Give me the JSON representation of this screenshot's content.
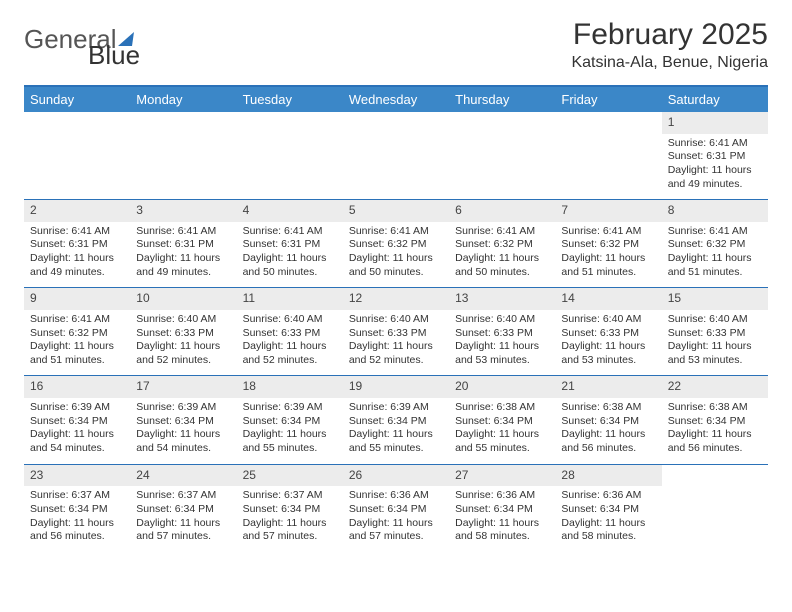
{
  "brand": {
    "text1": "General",
    "text2": "Blue"
  },
  "title": "February 2025",
  "location": "Katsina-Ala, Benue, Nigeria",
  "colors": {
    "header_blue": "#3b87c8",
    "rule_blue": "#2a71b8",
    "daynum_bg": "#ececec",
    "text": "#333333",
    "page_bg": "#ffffff"
  },
  "typography": {
    "title_fontsize": 30,
    "location_fontsize": 16,
    "dayhead_fontsize": 13,
    "body_fontsize": 10.5
  },
  "days_of_week": [
    "Sunday",
    "Monday",
    "Tuesday",
    "Wednesday",
    "Thursday",
    "Friday",
    "Saturday"
  ],
  "layout": {
    "columns": 7,
    "rows": 5,
    "first_weekday_index": 6,
    "days_in_month": 28
  },
  "cells": [
    [
      {
        "blank": true
      },
      {
        "blank": true
      },
      {
        "blank": true
      },
      {
        "blank": true
      },
      {
        "blank": true
      },
      {
        "blank": true
      },
      {
        "n": "1",
        "sunrise": "Sunrise: 6:41 AM",
        "sunset": "Sunset: 6:31 PM",
        "daylight": "Daylight: 11 hours and 49 minutes."
      }
    ],
    [
      {
        "n": "2",
        "sunrise": "Sunrise: 6:41 AM",
        "sunset": "Sunset: 6:31 PM",
        "daylight": "Daylight: 11 hours and 49 minutes."
      },
      {
        "n": "3",
        "sunrise": "Sunrise: 6:41 AM",
        "sunset": "Sunset: 6:31 PM",
        "daylight": "Daylight: 11 hours and 49 minutes."
      },
      {
        "n": "4",
        "sunrise": "Sunrise: 6:41 AM",
        "sunset": "Sunset: 6:31 PM",
        "daylight": "Daylight: 11 hours and 50 minutes."
      },
      {
        "n": "5",
        "sunrise": "Sunrise: 6:41 AM",
        "sunset": "Sunset: 6:32 PM",
        "daylight": "Daylight: 11 hours and 50 minutes."
      },
      {
        "n": "6",
        "sunrise": "Sunrise: 6:41 AM",
        "sunset": "Sunset: 6:32 PM",
        "daylight": "Daylight: 11 hours and 50 minutes."
      },
      {
        "n": "7",
        "sunrise": "Sunrise: 6:41 AM",
        "sunset": "Sunset: 6:32 PM",
        "daylight": "Daylight: 11 hours and 51 minutes."
      },
      {
        "n": "8",
        "sunrise": "Sunrise: 6:41 AM",
        "sunset": "Sunset: 6:32 PM",
        "daylight": "Daylight: 11 hours and 51 minutes."
      }
    ],
    [
      {
        "n": "9",
        "sunrise": "Sunrise: 6:41 AM",
        "sunset": "Sunset: 6:32 PM",
        "daylight": "Daylight: 11 hours and 51 minutes."
      },
      {
        "n": "10",
        "sunrise": "Sunrise: 6:40 AM",
        "sunset": "Sunset: 6:33 PM",
        "daylight": "Daylight: 11 hours and 52 minutes."
      },
      {
        "n": "11",
        "sunrise": "Sunrise: 6:40 AM",
        "sunset": "Sunset: 6:33 PM",
        "daylight": "Daylight: 11 hours and 52 minutes."
      },
      {
        "n": "12",
        "sunrise": "Sunrise: 6:40 AM",
        "sunset": "Sunset: 6:33 PM",
        "daylight": "Daylight: 11 hours and 52 minutes."
      },
      {
        "n": "13",
        "sunrise": "Sunrise: 6:40 AM",
        "sunset": "Sunset: 6:33 PM",
        "daylight": "Daylight: 11 hours and 53 minutes."
      },
      {
        "n": "14",
        "sunrise": "Sunrise: 6:40 AM",
        "sunset": "Sunset: 6:33 PM",
        "daylight": "Daylight: 11 hours and 53 minutes."
      },
      {
        "n": "15",
        "sunrise": "Sunrise: 6:40 AM",
        "sunset": "Sunset: 6:33 PM",
        "daylight": "Daylight: 11 hours and 53 minutes."
      }
    ],
    [
      {
        "n": "16",
        "sunrise": "Sunrise: 6:39 AM",
        "sunset": "Sunset: 6:34 PM",
        "daylight": "Daylight: 11 hours and 54 minutes."
      },
      {
        "n": "17",
        "sunrise": "Sunrise: 6:39 AM",
        "sunset": "Sunset: 6:34 PM",
        "daylight": "Daylight: 11 hours and 54 minutes."
      },
      {
        "n": "18",
        "sunrise": "Sunrise: 6:39 AM",
        "sunset": "Sunset: 6:34 PM",
        "daylight": "Daylight: 11 hours and 55 minutes."
      },
      {
        "n": "19",
        "sunrise": "Sunrise: 6:39 AM",
        "sunset": "Sunset: 6:34 PM",
        "daylight": "Daylight: 11 hours and 55 minutes."
      },
      {
        "n": "20",
        "sunrise": "Sunrise: 6:38 AM",
        "sunset": "Sunset: 6:34 PM",
        "daylight": "Daylight: 11 hours and 55 minutes."
      },
      {
        "n": "21",
        "sunrise": "Sunrise: 6:38 AM",
        "sunset": "Sunset: 6:34 PM",
        "daylight": "Daylight: 11 hours and 56 minutes."
      },
      {
        "n": "22",
        "sunrise": "Sunrise: 6:38 AM",
        "sunset": "Sunset: 6:34 PM",
        "daylight": "Daylight: 11 hours and 56 minutes."
      }
    ],
    [
      {
        "n": "23",
        "sunrise": "Sunrise: 6:37 AM",
        "sunset": "Sunset: 6:34 PM",
        "daylight": "Daylight: 11 hours and 56 minutes."
      },
      {
        "n": "24",
        "sunrise": "Sunrise: 6:37 AM",
        "sunset": "Sunset: 6:34 PM",
        "daylight": "Daylight: 11 hours and 57 minutes."
      },
      {
        "n": "25",
        "sunrise": "Sunrise: 6:37 AM",
        "sunset": "Sunset: 6:34 PM",
        "daylight": "Daylight: 11 hours and 57 minutes."
      },
      {
        "n": "26",
        "sunrise": "Sunrise: 6:36 AM",
        "sunset": "Sunset: 6:34 PM",
        "daylight": "Daylight: 11 hours and 57 minutes."
      },
      {
        "n": "27",
        "sunrise": "Sunrise: 6:36 AM",
        "sunset": "Sunset: 6:34 PM",
        "daylight": "Daylight: 11 hours and 58 minutes."
      },
      {
        "n": "28",
        "sunrise": "Sunrise: 6:36 AM",
        "sunset": "Sunset: 6:34 PM",
        "daylight": "Daylight: 11 hours and 58 minutes."
      },
      {
        "blank": true
      }
    ]
  ]
}
